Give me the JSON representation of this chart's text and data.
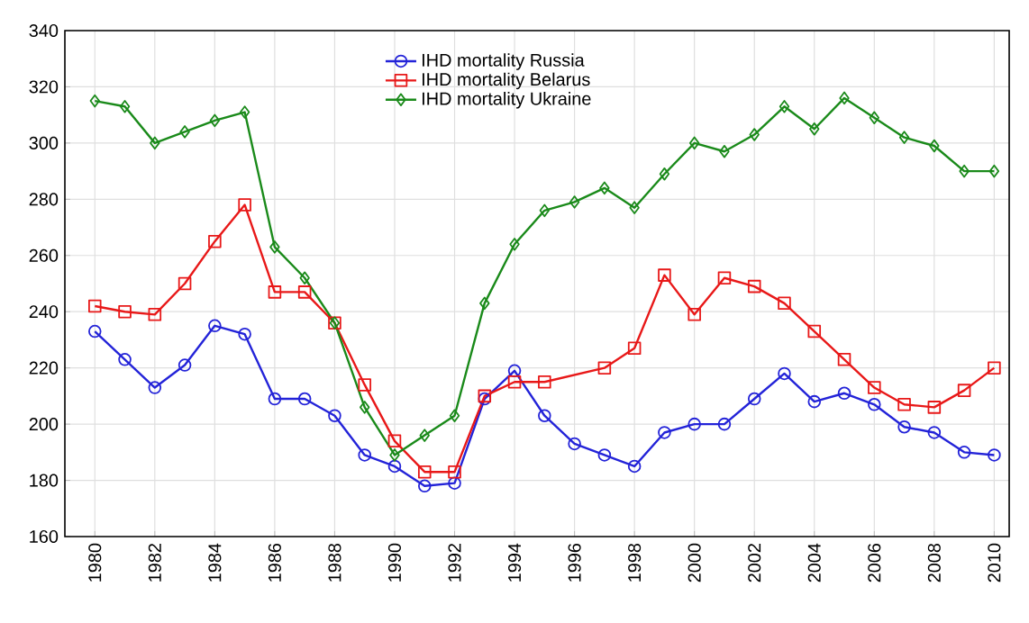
{
  "chart_data": {
    "type": "line",
    "x": [
      1980,
      1981,
      1982,
      1983,
      1984,
      1985,
      1986,
      1987,
      1988,
      1989,
      1990,
      1991,
      1992,
      1993,
      1994,
      1995,
      1996,
      1997,
      1998,
      1999,
      2000,
      2001,
      2002,
      2003,
      2004,
      2005,
      2006,
      2007,
      2008,
      2009,
      2010
    ],
    "series": [
      {
        "name": "IHD mortality  Russia",
        "color": "#2323d8",
        "marker": "circle",
        "values": [
          233,
          223,
          213,
          221,
          235,
          232,
          209,
          209,
          203,
          189,
          185,
          178,
          179,
          209,
          219,
          203,
          193,
          189,
          185,
          197,
          200,
          200,
          209,
          218,
          208,
          211,
          207,
          199,
          197,
          190,
          189
        ]
      },
      {
        "name": "IHD mortality  Belarus",
        "color": "#e81818",
        "marker": "square",
        "x": [
          1980,
          1981,
          1982,
          1983,
          1984,
          1985,
          1986,
          1987,
          1988,
          1989,
          1990,
          1991,
          1992,
          1993,
          1994,
          1995,
          1997,
          1998,
          1999,
          2000,
          2001,
          2002,
          2003,
          2004,
          2005,
          2006,
          2007,
          2008,
          2009,
          2010
        ],
        "values": [
          242,
          240,
          239,
          250,
          265,
          278,
          247,
          247,
          236,
          214,
          194,
          183,
          183,
          210,
          215,
          215,
          220,
          227,
          253,
          239,
          252,
          249,
          243,
          233,
          223,
          213,
          207,
          206,
          212,
          220
        ]
      },
      {
        "name": "IHD mortality  Ukraine",
        "color": "#1a8a1a",
        "marker": "diamond",
        "values": [
          315,
          313,
          300,
          304,
          308,
          311,
          263,
          252,
          236,
          206,
          189,
          196,
          203,
          243,
          264,
          276,
          279,
          284,
          277,
          289,
          300,
          297,
          303,
          313,
          305,
          316,
          309,
          302,
          299,
          290,
          290
        ]
      }
    ],
    "xlim": [
      1979,
      2010.5
    ],
    "xticks": [
      1980,
      1982,
      1984,
      1986,
      1988,
      1990,
      1992,
      1994,
      1996,
      1998,
      2000,
      2002,
      2004,
      2006,
      2008,
      2010
    ],
    "ylim": [
      160,
      340
    ],
    "yticks": [
      160,
      180,
      200,
      220,
      240,
      260,
      280,
      300,
      320,
      340
    ],
    "grid": true,
    "legend": "top",
    "line_style": "solid"
  }
}
